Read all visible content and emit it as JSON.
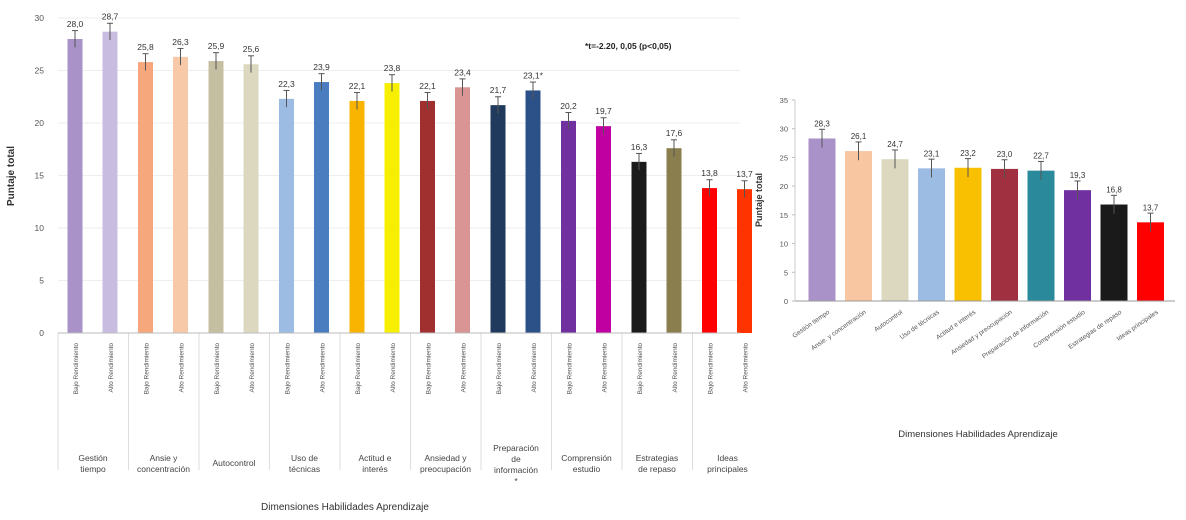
{
  "chart_data": [
    {
      "type": "bar",
      "ylabel": "Puntaje total",
      "xlabel": "Dimensiones Habilidades Aprendizaje",
      "ylim": [
        0,
        30
      ],
      "yticks": [
        "0",
        "5",
        "10",
        "15",
        "20",
        "25",
        "30"
      ],
      "annotation": "*t=-2.20, 0,05 (p<0,05)",
      "groups": [
        {
          "label": "Gestión tiempo",
          "bars": [
            {
              "sub": "Bajo Rendimiento",
              "value": 28.0,
              "label": "28,0",
              "color": "#a892c8"
            },
            {
              "sub": "Alto Rendimiento",
              "value": 28.7,
              "label": "28,7",
              "color": "#c8bce0"
            }
          ]
        },
        {
          "label": "Ansie y concentración",
          "bars": [
            {
              "sub": "Bajo Rendimiento",
              "value": 25.8,
              "label": "25,8",
              "color": "#f6a77c"
            },
            {
              "sub": "Alto Rendimiento",
              "value": 26.3,
              "label": "26,3",
              "color": "#f8c9a8"
            }
          ]
        },
        {
          "label": "Autocontrol",
          "bars": [
            {
              "sub": "Bajo Rendimiento",
              "value": 25.9,
              "label": "25,9",
              "color": "#c4bfa0"
            },
            {
              "sub": "Alto Rendimiento",
              "value": 25.6,
              "label": "25,6",
              "color": "#dcd8c0"
            }
          ]
        },
        {
          "label": "Uso de técnicas",
          "bars": [
            {
              "sub": "Bajo Rendimiento",
              "value": 22.3,
              "label": "22,3",
              "color": "#9cbce4"
            },
            {
              "sub": "Alto Rendimiento",
              "value": 23.9,
              "label": "23,9",
              "color": "#4a7cc0"
            }
          ]
        },
        {
          "label": "Actitud e interés",
          "bars": [
            {
              "sub": "Bajo Rendimiento",
              "value": 22.1,
              "label": "22,1",
              "color": "#f8b400"
            },
            {
              "sub": "Alto Rendimiento",
              "value": 23.8,
              "label": "23,8",
              "color": "#f6f000"
            }
          ]
        },
        {
          "label": "Ansiedad y preocupación",
          "bars": [
            {
              "sub": "Bajo Rendimiento",
              "value": 22.1,
              "label": "22,1",
              "color": "#a03030"
            },
            {
              "sub": "Alto Rendimiento",
              "value": 23.4,
              "label": "23,4",
              "color": "#d99494"
            }
          ]
        },
        {
          "label": "Preparación de información *",
          "bars": [
            {
              "sub": "Bajo Rendimiento",
              "value": 21.7,
              "label": "21,7",
              "color": "#1f3a5c"
            },
            {
              "sub": "Alto Rendimiento",
              "value": 23.1,
              "label": "23,1*",
              "color": "#2c5088"
            }
          ]
        },
        {
          "label": "Comprensión estudio",
          "bars": [
            {
              "sub": "Bajo Rendimiento",
              "value": 20.2,
              "label": "20,2",
              "color": "#7030a0"
            },
            {
              "sub": "Alto Rendimiento",
              "value": 19.7,
              "label": "19,7",
              "color": "#c000a0"
            }
          ]
        },
        {
          "label": "Estrategias de repaso",
          "bars": [
            {
              "sub": "Bajo Rendimiento",
              "value": 16.3,
              "label": "16,3",
              "color": "#1a1a1a"
            },
            {
              "sub": "Alto Rendimiento",
              "value": 17.6,
              "label": "17,6",
              "color": "#8a7e4e"
            }
          ]
        },
        {
          "label": "Ideas principales",
          "bars": [
            {
              "sub": "Bajo Rendimiento",
              "value": 13.8,
              "label": "13,8",
              "color": "#ff0000"
            },
            {
              "sub": "Alto Rendimiento",
              "value": 13.7,
              "label": "13,7",
              "color": "#ff3300"
            }
          ]
        }
      ]
    },
    {
      "type": "bar",
      "ylabel": "Puntaje total",
      "xlabel": "Dimensiones Habilidades Aprendizaje",
      "ylim": [
        0,
        35
      ],
      "yticks": [
        "0",
        "5",
        "10",
        "15",
        "20",
        "25",
        "30",
        "35"
      ],
      "bars": [
        {
          "category": "Gestión tiempo",
          "value": 28.3,
          "label": "28,3",
          "color": "#a892c8"
        },
        {
          "category": "Ansie. y concentración",
          "value": 26.1,
          "label": "26,1",
          "color": "#f8c6a0"
        },
        {
          "category": "Autocontrol",
          "value": 24.7,
          "label": "24,7",
          "color": "#dcd8c0"
        },
        {
          "category": "Uso de técnicas",
          "value": 23.1,
          "label": "23,1",
          "color": "#9cbce4"
        },
        {
          "category": "Actitud e interés",
          "value": 23.2,
          "label": "23,2",
          "color": "#f8c000"
        },
        {
          "category": "Ansiedad y preocupación",
          "value": 23.0,
          "label": "23,0",
          "color": "#a03040"
        },
        {
          "category": "Preparación de información",
          "value": 22.7,
          "label": "22,7",
          "color": "#2a8a9c"
        },
        {
          "category": "Comprensión estudio",
          "value": 19.3,
          "label": "19,3",
          "color": "#7030a0"
        },
        {
          "category": "Estrategias de repaso",
          "value": 16.8,
          "label": "16,8",
          "color": "#1a1a1a"
        },
        {
          "category": "Ideas principales",
          "value": 13.7,
          "label": "13,7",
          "color": "#ff0000"
        }
      ]
    }
  ]
}
